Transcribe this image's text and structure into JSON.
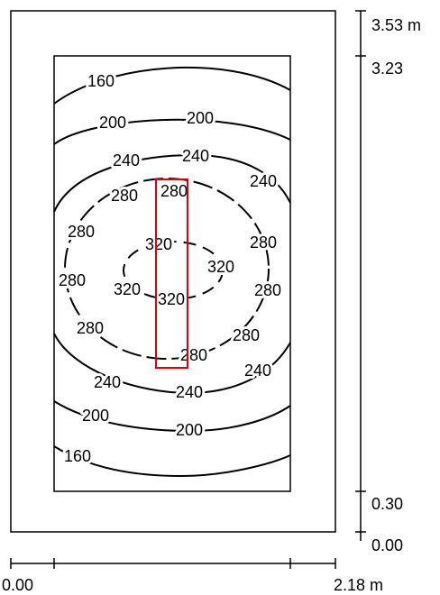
{
  "dimensions": {
    "vertical": [
      "3.53 m",
      "3.23",
      "0.30",
      "0.00"
    ],
    "horizontal": [
      "0.00",
      "2.18 m"
    ]
  },
  "contour_labels": [
    "160",
    "200",
    "200",
    "240",
    "240",
    "240",
    "280",
    "280",
    "280",
    "280",
    "320",
    "320",
    "280",
    "320",
    "320",
    "280",
    "280",
    "280",
    "280",
    "240",
    "240",
    "240",
    "200",
    "200",
    "160"
  ]
}
